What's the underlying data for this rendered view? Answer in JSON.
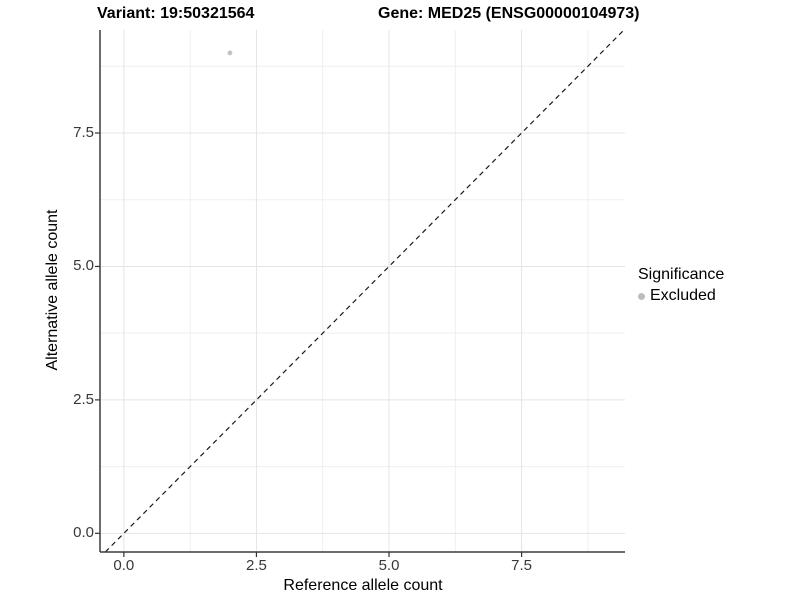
{
  "header": {
    "variant_title": "Variant: 19:50321564",
    "gene_title": "Gene: MED25 (ENSG00000104973)"
  },
  "chart_data": {
    "type": "scatter",
    "title_left": "Variant: 19:50321564",
    "title_right": "Gene: MED25 (ENSG00000104973)",
    "xlabel": "Reference allele count",
    "ylabel": "Alternative allele count",
    "x_ticks": [
      0.0,
      2.5,
      5.0,
      7.5
    ],
    "y_ticks": [
      0.0,
      2.5,
      5.0,
      7.5
    ],
    "x_tick_labels": [
      "0.0",
      "2.5",
      "5.0",
      "7.5"
    ],
    "y_tick_labels": [
      "0.0",
      "2.5",
      "5.0",
      "7.5"
    ],
    "x_minor_ticks": [
      1.25,
      3.75,
      6.25,
      8.75
    ],
    "y_minor_ticks": [
      1.25,
      3.75,
      6.25,
      8.75
    ],
    "xlim": [
      -0.45,
      9.45
    ],
    "ylim": [
      -0.35,
      9.43
    ],
    "grid": true,
    "points": [
      {
        "x": 2,
        "y": 9,
        "series": "Excluded"
      }
    ],
    "reference_line": {
      "type": "identity",
      "slope": 1,
      "intercept": 0,
      "style": "dashed"
    },
    "legend": {
      "position": "right",
      "title": "Significance",
      "items": [
        {
          "label": "Excluded",
          "color": "#bdbdbd"
        }
      ]
    },
    "colors": {
      "point": "#c3c3c3",
      "legend_key": "#b5b5b5",
      "grid_major": "#e4e4e4",
      "grid_minor": "#efefef",
      "axis_line": "#3c3c3c",
      "tick_mark": "#333333",
      "reference_line": "#1a1a1a",
      "background": "#ffffff"
    }
  }
}
